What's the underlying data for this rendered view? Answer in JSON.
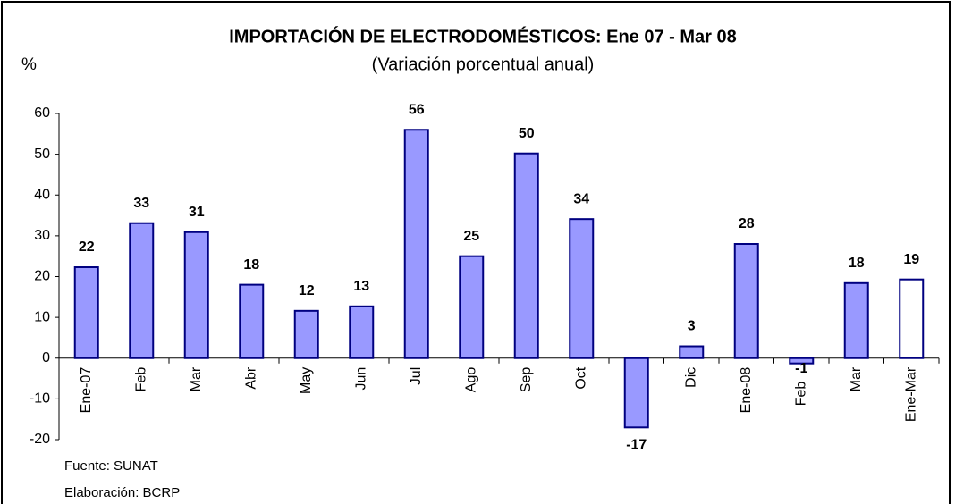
{
  "chart_data": {
    "type": "bar",
    "title": "IMPORTACIÓN DE ELECTRODOMÉSTICOS: Ene 07 - Mar 08",
    "subtitle": "(Variación porcentual anual)",
    "y_axis_label": "%",
    "categories": [
      "Ene-07",
      "Feb",
      "Mar",
      "Abr",
      "May",
      "Jun",
      "Jul",
      "Ago",
      "Sep",
      "Oct",
      null,
      "Dic",
      "Ene-08",
      "Feb",
      "Mar",
      "Ene-Mar"
    ],
    "values": [
      22.3,
      33.1,
      30.9,
      18.0,
      11.6,
      12.7,
      56.0,
      25.0,
      50.2,
      34.1,
      -17.0,
      2.9,
      28.0,
      -1.3,
      18.4,
      19.3
    ],
    "value_labels": [
      "22",
      "33",
      "31",
      "18",
      "12",
      "13",
      "56",
      "25",
      "50",
      "34",
      "-17",
      "3",
      "28",
      "-1",
      "18",
      "19"
    ],
    "colors": [
      "#9999ff",
      "#9999ff",
      "#9999ff",
      "#9999ff",
      "#9999ff",
      "#9999ff",
      "#9999ff",
      "#9999ff",
      "#9999ff",
      "#9999ff",
      "#9999ff",
      "#9999ff",
      "#9999ff",
      "#9999ff",
      "#9999ff",
      "#ffffff"
    ],
    "ylim": [
      -20,
      60
    ],
    "yticks": [
      -20,
      -10,
      0,
      10,
      20,
      30,
      40,
      50,
      60
    ],
    "notes": [
      "Fuente: SUNAT",
      "Elaboración: BCRP"
    ]
  }
}
